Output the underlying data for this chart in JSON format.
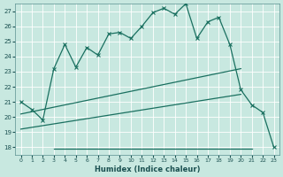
{
  "background_color": "#c8e8e0",
  "grid_color": "#b0d8d0",
  "line_color": "#1a7060",
  "xlabel": "Humidex (Indice chaleur)",
  "xlim": [
    -0.5,
    23.5
  ],
  "ylim": [
    17.5,
    27.5
  ],
  "xticks": [
    0,
    1,
    2,
    3,
    4,
    5,
    6,
    7,
    8,
    9,
    10,
    11,
    12,
    13,
    14,
    15,
    16,
    17,
    18,
    19,
    20,
    21,
    22,
    23
  ],
  "yticks": [
    18,
    19,
    20,
    21,
    22,
    23,
    24,
    25,
    26,
    27
  ],
  "main_x": [
    0,
    1,
    2,
    3,
    4,
    5,
    6,
    7,
    8,
    9,
    10,
    11,
    12,
    13,
    14,
    15,
    16,
    17,
    18,
    19,
    20,
    21,
    22,
    23
  ],
  "main_y": [
    21.0,
    20.5,
    19.8,
    23.2,
    24.8,
    23.3,
    24.6,
    24.1,
    25.5,
    25.6,
    25.2,
    26.0,
    26.9,
    27.2,
    26.8,
    27.5,
    25.2,
    26.3,
    26.6,
    24.8,
    21.8,
    20.8,
    20.3,
    18.0
  ],
  "upper_line_x": [
    0,
    20
  ],
  "upper_line_y": [
    20.2,
    23.2
  ],
  "lower_line1_x": [
    0,
    20
  ],
  "lower_line1_y": [
    19.2,
    21.5
  ],
  "horiz_line_x": [
    3,
    21
  ],
  "horiz_line_y": [
    17.9,
    17.9
  ]
}
